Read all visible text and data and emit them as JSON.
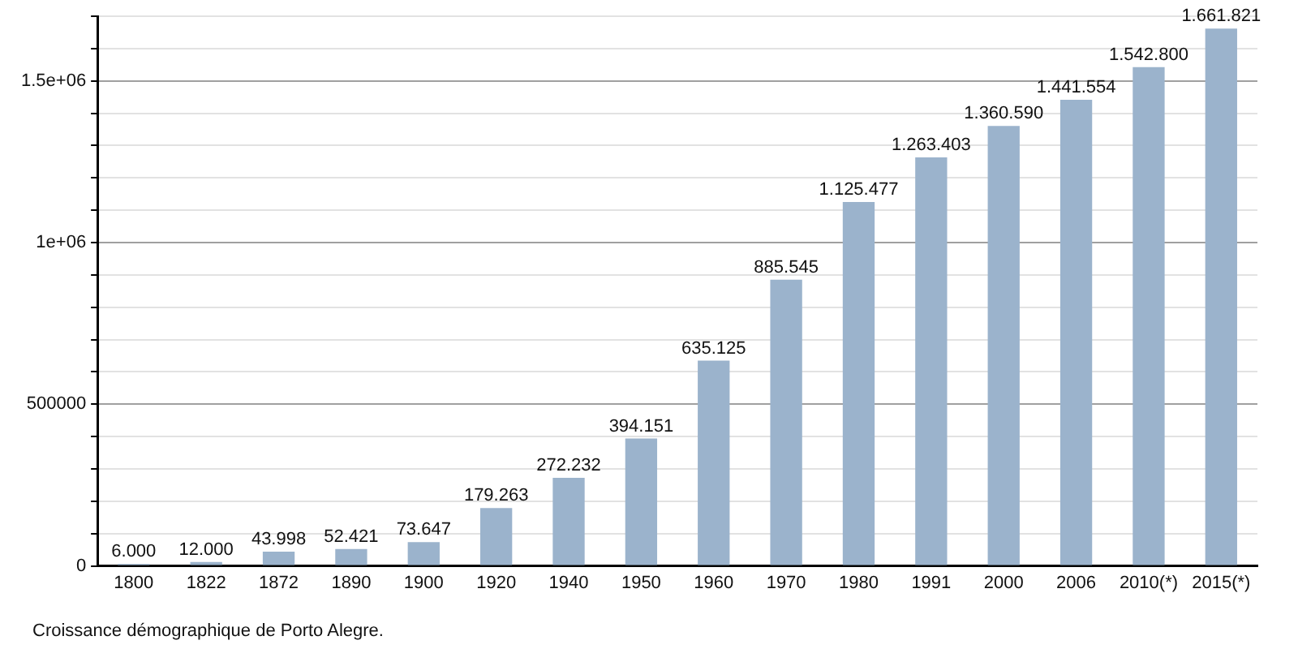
{
  "chart_data": {
    "type": "bar",
    "categories": [
      "1800",
      "1822",
      "1872",
      "1890",
      "1900",
      "1920",
      "1940",
      "1950",
      "1960",
      "1970",
      "1980",
      "1991",
      "2000",
      "2006",
      "2010(*)",
      "2015(*)"
    ],
    "values": [
      6000,
      12000,
      43998,
      52421,
      73647,
      179263,
      272232,
      394151,
      635125,
      885545,
      1125477,
      1263403,
      1360590,
      1441554,
      1542800,
      1661821
    ],
    "value_labels": [
      "6.000",
      "12.000",
      "43.998",
      "52.421",
      "73.647",
      "179.263",
      "272.232",
      "394.151",
      "635.125",
      "885.545",
      "1.125.477",
      "1.263.403",
      "1.360.590",
      "1.441.554",
      "1.542.800",
      "1.661.821"
    ],
    "color": "#9bb3cc",
    "ylim": [
      0,
      1700000
    ],
    "yticks": [
      0,
      {
        "value": 100000,
        "label": null
      },
      {
        "value": 200000,
        "label": null
      },
      {
        "value": 300000,
        "label": null
      },
      {
        "value": 400000,
        "label": null
      },
      500000,
      {
        "value": 600000,
        "label": null
      },
      {
        "value": 700000,
        "label": null
      },
      {
        "value": 800000,
        "label": null
      },
      {
        "value": 900000,
        "label": null
      },
      {
        "value": 1000000,
        "label": "1e+06"
      },
      {
        "value": 1100000,
        "label": null
      },
      {
        "value": 1200000,
        "label": null
      },
      {
        "value": 1300000,
        "label": null
      },
      {
        "value": 1400000,
        "label": null
      },
      {
        "value": 1500000,
        "label": "1.5e+06"
      },
      {
        "value": 1600000,
        "label": null
      },
      {
        "value": 1700000,
        "label": null
      }
    ],
    "grid": "y",
    "annotations": [
      "Croissance démographique de Porto Alegre."
    ]
  }
}
